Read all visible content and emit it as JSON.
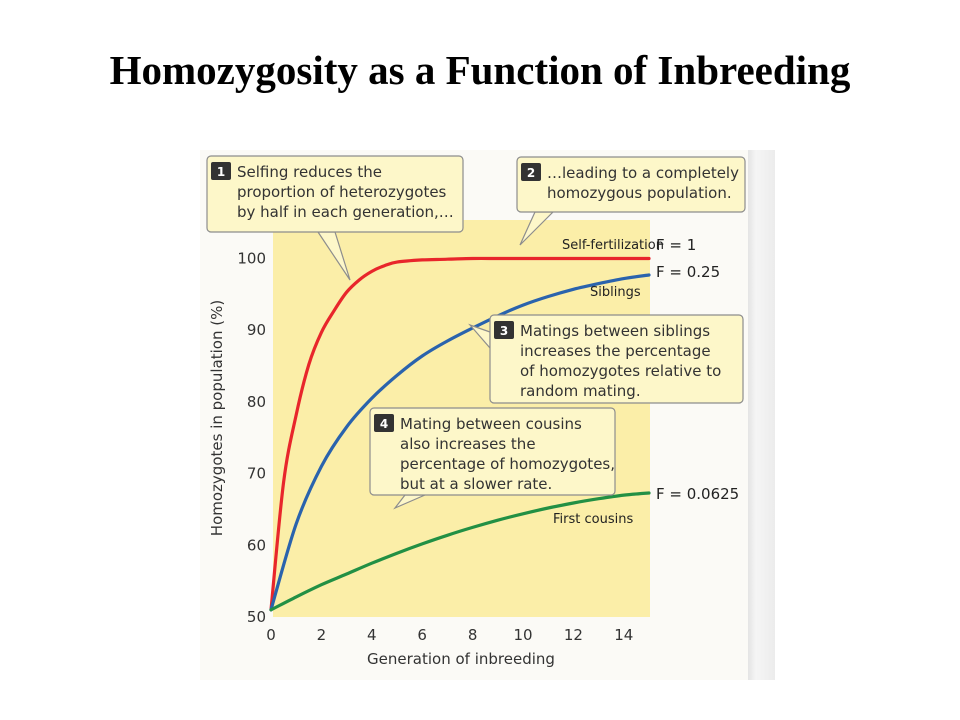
{
  "title": "Homozygosity as a Function of Inbreeding",
  "chart_data": {
    "type": "line",
    "xlabel": "Generation of inbreeding",
    "ylabel": "Homozygotes in population (%)",
    "xlim": [
      0,
      15
    ],
    "ylim": [
      50,
      102
    ],
    "x_ticks": [
      0,
      2,
      4,
      6,
      8,
      10,
      12,
      14
    ],
    "y_ticks": [
      50,
      60,
      70,
      80,
      90,
      100
    ],
    "grid": false,
    "series": [
      {
        "name": "Self-fertilization",
        "f_value": "F = 1",
        "color": "#e8262b",
        "x": [
          0,
          0.5,
          1,
          1.5,
          2,
          2.5,
          3,
          3.5,
          4,
          4.5,
          5,
          6,
          7,
          8,
          9,
          10,
          11,
          12,
          13,
          14,
          15
        ],
        "y": [
          51,
          68.8,
          78.2,
          85.2,
          89.7,
          92.7,
          95.3,
          97.0,
          98.2,
          99.0,
          99.5,
          99.8,
          99.9,
          100,
          100,
          100,
          100,
          100,
          100,
          100,
          100
        ]
      },
      {
        "name": "Siblings",
        "f_value": "F = 0.25",
        "color": "#2a63ad",
        "x": [
          0,
          1,
          2,
          3,
          4,
          5,
          6,
          7,
          8,
          9,
          10,
          11,
          12,
          13,
          14,
          15
        ],
        "y": [
          51,
          63,
          71,
          76.5,
          80.5,
          83.7,
          86.4,
          88.5,
          90.3,
          92,
          93.5,
          94.7,
          95.7,
          96.5,
          97.2,
          97.7
        ]
      },
      {
        "name": "First cousins",
        "f_value": "F = 0.0625",
        "color": "#229044",
        "x": [
          0,
          1,
          2,
          3,
          4,
          5,
          6,
          7,
          8,
          9,
          10,
          11,
          12,
          13,
          14,
          15
        ],
        "y": [
          51,
          52.8,
          54.5,
          56,
          57.5,
          58.9,
          60.2,
          61.4,
          62.5,
          63.5,
          64.4,
          65.2,
          65.9,
          66.5,
          67,
          67.3
        ]
      }
    ],
    "annotations": [
      {
        "number": "1",
        "lines": [
          "Selfing reduces the",
          "proportion of heterozygotes",
          "by half in each generation,…"
        ]
      },
      {
        "number": "2",
        "lines": [
          "…leading to a completely",
          "homozygous population."
        ]
      },
      {
        "number": "3",
        "lines": [
          "Matings between siblings",
          "increases the percentage",
          "of homozygotes relative to",
          "random mating."
        ]
      },
      {
        "number": "4",
        "lines": [
          "Mating between cousins",
          "also increases the",
          "percentage of homozygotes,",
          "but at a slower rate."
        ]
      }
    ]
  },
  "colors": {
    "plot_background": "#fbeea8",
    "callout_fill": "#fdf7c9",
    "callout_border": "#8d8d8d"
  }
}
